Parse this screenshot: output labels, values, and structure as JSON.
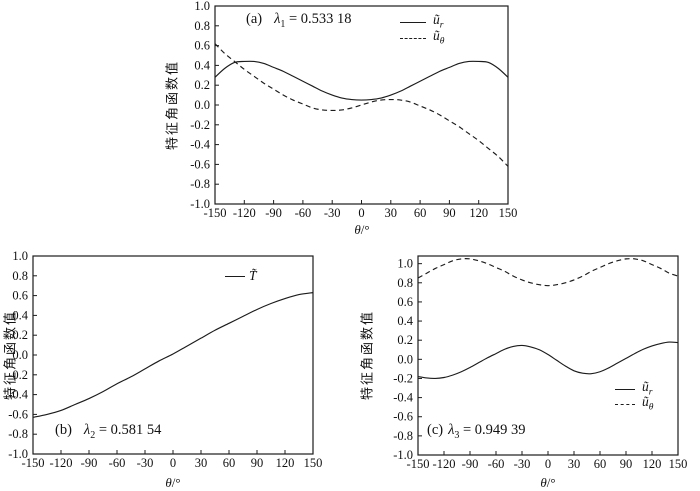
{
  "figure": {
    "background": "#ffffff",
    "line_color": "#1c1c1c",
    "text_color": "#111111"
  },
  "chart_data": [
    {
      "id": "a",
      "type": "line",
      "title": {
        "prefix": "(a)",
        "symbol": "λ",
        "subscript": "1",
        "value": "= 0.533 18"
      },
      "xlabel": {
        "symbol": "θ",
        "rest": "/°"
      },
      "ylabel": "特征角函数值",
      "xlim": [
        -150,
        150
      ],
      "ylim": [
        -1.0,
        1.0
      ],
      "xticks": [
        -150,
        -120,
        -90,
        -60,
        -30,
        0,
        30,
        60,
        90,
        120,
        150
      ],
      "yticks": [
        -1.0,
        -0.8,
        -0.6,
        -0.4,
        -0.2,
        0.0,
        0.2,
        0.4,
        0.6,
        0.8,
        1.0
      ],
      "grid": false,
      "legend_position": "upper-right-inside",
      "legend": [
        {
          "style": "solid",
          "symbol": "ũ",
          "subscript": "r"
        },
        {
          "style": "dashed",
          "symbol": "ũ",
          "subscript": "θ"
        }
      ],
      "series": [
        {
          "name": "u_r",
          "style": "solid",
          "points": [
            [
              -150,
              0.28
            ],
            [
              -140,
              0.37
            ],
            [
              -130,
              0.43
            ],
            [
              -120,
              0.44
            ],
            [
              -110,
              0.44
            ],
            [
              -100,
              0.42
            ],
            [
              -90,
              0.38
            ],
            [
              -80,
              0.34
            ],
            [
              -70,
              0.29
            ],
            [
              -60,
              0.24
            ],
            [
              -50,
              0.19
            ],
            [
              -40,
              0.14
            ],
            [
              -30,
              0.1
            ],
            [
              -20,
              0.07
            ],
            [
              -10,
              0.055
            ],
            [
              0,
              0.05
            ],
            [
              10,
              0.055
            ],
            [
              20,
              0.07
            ],
            [
              30,
              0.1
            ],
            [
              40,
              0.14
            ],
            [
              50,
              0.19
            ],
            [
              60,
              0.24
            ],
            [
              70,
              0.29
            ],
            [
              80,
              0.34
            ],
            [
              90,
              0.38
            ],
            [
              100,
              0.42
            ],
            [
              110,
              0.44
            ],
            [
              120,
              0.44
            ],
            [
              130,
              0.43
            ],
            [
              140,
              0.37
            ],
            [
              150,
              0.28
            ]
          ]
        },
        {
          "name": "u_theta",
          "style": "dashed",
          "points": [
            [
              -150,
              0.62
            ],
            [
              -140,
              0.52
            ],
            [
              -130,
              0.44
            ],
            [
              -120,
              0.36
            ],
            [
              -110,
              0.29
            ],
            [
              -100,
              0.22
            ],
            [
              -90,
              0.16
            ],
            [
              -80,
              0.1
            ],
            [
              -70,
              0.05
            ],
            [
              -60,
              0.01
            ],
            [
              -50,
              -0.03
            ],
            [
              -40,
              -0.05
            ],
            [
              -30,
              -0.055
            ],
            [
              -20,
              -0.05
            ],
            [
              -10,
              -0.03
            ],
            [
              0,
              0.0
            ],
            [
              10,
              0.03
            ],
            [
              20,
              0.05
            ],
            [
              30,
              0.055
            ],
            [
              40,
              0.05
            ],
            [
              50,
              0.03
            ],
            [
              60,
              -0.01
            ],
            [
              70,
              -0.05
            ],
            [
              80,
              -0.1
            ],
            [
              90,
              -0.16
            ],
            [
              100,
              -0.22
            ],
            [
              110,
              -0.29
            ],
            [
              120,
              -0.36
            ],
            [
              130,
              -0.44
            ],
            [
              140,
              -0.52
            ],
            [
              150,
              -0.62
            ]
          ]
        }
      ]
    },
    {
      "id": "b",
      "type": "line",
      "title": {
        "prefix": "(b)",
        "symbol": "λ",
        "subscript": "2",
        "value": "= 0.581 54"
      },
      "xlabel": {
        "symbol": "θ",
        "rest": "/°"
      },
      "ylabel": "特征角函数值",
      "xlim": [
        -150,
        150
      ],
      "ylim": [
        -1.0,
        1.0
      ],
      "xticks": [
        -150,
        -120,
        -90,
        -60,
        -30,
        0,
        30,
        60,
        90,
        120,
        150
      ],
      "yticks": [
        -1.0,
        -0.8,
        -0.6,
        -0.4,
        -0.2,
        0.0,
        0.2,
        0.4,
        0.6,
        0.8,
        1.0
      ],
      "grid": false,
      "legend_position": "upper-right-inside",
      "legend": [
        {
          "style": "solid",
          "symbol": "T̃",
          "subscript": ""
        }
      ],
      "series": [
        {
          "name": "T",
          "style": "solid",
          "points": [
            [
              -150,
              -0.63
            ],
            [
              -135,
              -0.6
            ],
            [
              -120,
              -0.56
            ],
            [
              -105,
              -0.5
            ],
            [
              -90,
              -0.44
            ],
            [
              -75,
              -0.37
            ],
            [
              -60,
              -0.29
            ],
            [
              -45,
              -0.22
            ],
            [
              -30,
              -0.14
            ],
            [
              -15,
              -0.06
            ],
            [
              0,
              0.01
            ],
            [
              15,
              0.09
            ],
            [
              30,
              0.17
            ],
            [
              45,
              0.25
            ],
            [
              60,
              0.32
            ],
            [
              75,
              0.39
            ],
            [
              90,
              0.46
            ],
            [
              105,
              0.52
            ],
            [
              120,
              0.57
            ],
            [
              135,
              0.61
            ],
            [
              150,
              0.63
            ]
          ]
        }
      ]
    },
    {
      "id": "c",
      "type": "line",
      "title": {
        "prefix": "(c)",
        "symbol": "λ",
        "subscript": "3",
        "value": "= 0.949 39"
      },
      "xlabel": {
        "symbol": "θ",
        "rest": "/°"
      },
      "ylabel": "特征角函数值",
      "xlim": [
        -150,
        150
      ],
      "ylim": [
        -1.0,
        1.08
      ],
      "xticks": [
        -150,
        -120,
        -90,
        -60,
        -30,
        0,
        30,
        60,
        90,
        120,
        150
      ],
      "yticks": [
        -1.0,
        -0.8,
        -0.6,
        -0.4,
        -0.2,
        0.0,
        0.2,
        0.4,
        0.6,
        0.8,
        1.0
      ],
      "grid": false,
      "legend_position": "lower-right-inside",
      "legend": [
        {
          "style": "solid",
          "symbol": "ũ",
          "subscript": "r"
        },
        {
          "style": "dashed",
          "symbol": "ũ",
          "subscript": "θ"
        }
      ],
      "series": [
        {
          "name": "u_r",
          "style": "solid",
          "points": [
            [
              -150,
              -0.18
            ],
            [
              -140,
              -0.195
            ],
            [
              -130,
              -0.2
            ],
            [
              -120,
              -0.19
            ],
            [
              -110,
              -0.165
            ],
            [
              -100,
              -0.13
            ],
            [
              -90,
              -0.085
            ],
            [
              -80,
              -0.035
            ],
            [
              -70,
              0.015
            ],
            [
              -60,
              0.06
            ],
            [
              -50,
              0.105
            ],
            [
              -40,
              0.135
            ],
            [
              -30,
              0.145
            ],
            [
              -20,
              0.13
            ],
            [
              -10,
              0.1
            ],
            [
              0,
              0.05
            ],
            [
              10,
              -0.01
            ],
            [
              20,
              -0.07
            ],
            [
              30,
              -0.12
            ],
            [
              40,
              -0.145
            ],
            [
              50,
              -0.15
            ],
            [
              60,
              -0.13
            ],
            [
              70,
              -0.09
            ],
            [
              80,
              -0.04
            ],
            [
              90,
              0.01
            ],
            [
              100,
              0.06
            ],
            [
              110,
              0.105
            ],
            [
              120,
              0.14
            ],
            [
              130,
              0.165
            ],
            [
              140,
              0.18
            ],
            [
              150,
              0.175
            ]
          ]
        },
        {
          "name": "u_theta",
          "style": "dashed",
          "points": [
            [
              -150,
              0.85
            ],
            [
              -140,
              0.9
            ],
            [
              -130,
              0.95
            ],
            [
              -120,
              0.99
            ],
            [
              -110,
              1.03
            ],
            [
              -100,
              1.05
            ],
            [
              -90,
              1.05
            ],
            [
              -80,
              1.03
            ],
            [
              -70,
              1.0
            ],
            [
              -60,
              0.96
            ],
            [
              -50,
              0.92
            ],
            [
              -40,
              0.87
            ],
            [
              -30,
              0.83
            ],
            [
              -20,
              0.8
            ],
            [
              -10,
              0.78
            ],
            [
              0,
              0.77
            ],
            [
              10,
              0.78
            ],
            [
              20,
              0.8
            ],
            [
              30,
              0.83
            ],
            [
              40,
              0.87
            ],
            [
              50,
              0.92
            ],
            [
              60,
              0.96
            ],
            [
              70,
              1.0
            ],
            [
              80,
              1.03
            ],
            [
              90,
              1.05
            ],
            [
              100,
              1.05
            ],
            [
              110,
              1.03
            ],
            [
              120,
              0.99
            ],
            [
              130,
              0.95
            ],
            [
              140,
              0.9
            ],
            [
              150,
              0.87
            ]
          ]
        }
      ]
    }
  ]
}
